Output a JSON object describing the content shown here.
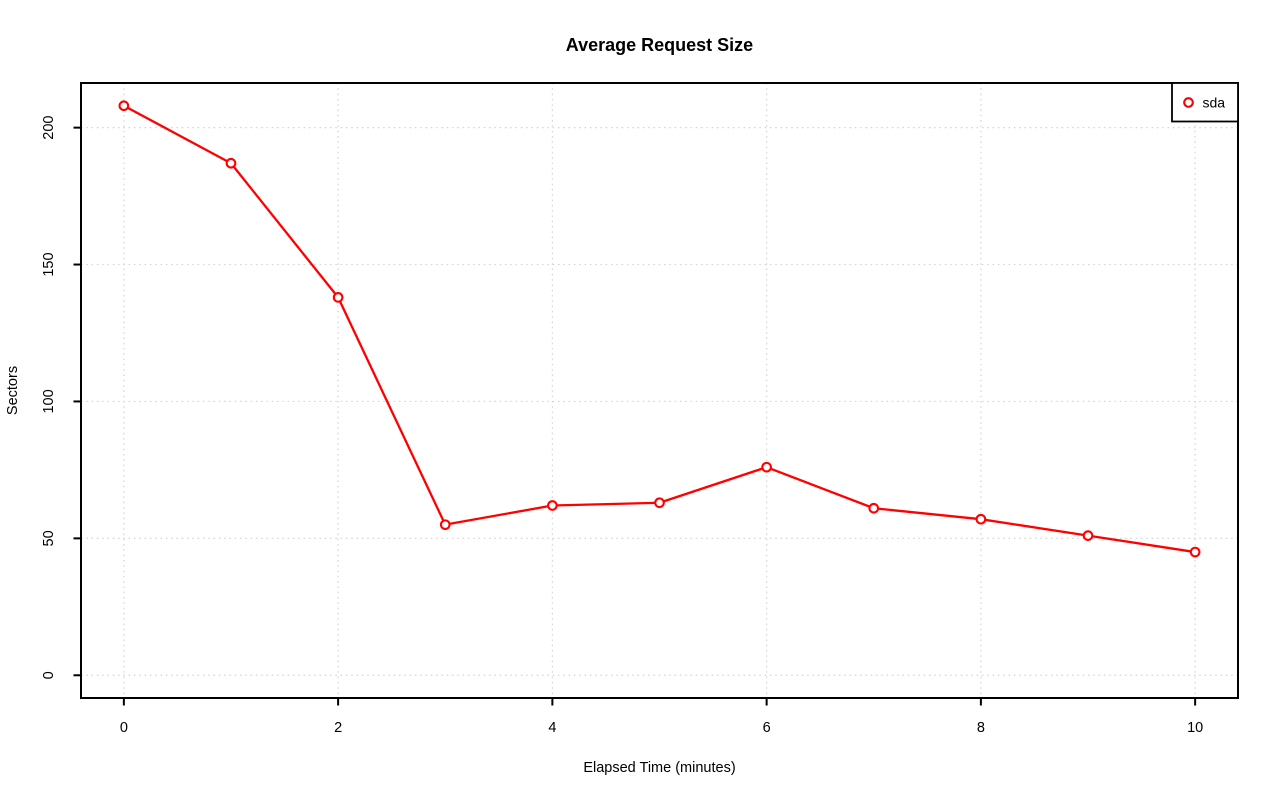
{
  "chart_data": {
    "type": "line",
    "title": "Average Request Size",
    "xlabel": "Elapsed Time (minutes)",
    "ylabel": "Sectors",
    "x": [
      0,
      1,
      2,
      3,
      4,
      5,
      6,
      7,
      8,
      9,
      10
    ],
    "series": [
      {
        "name": "sda",
        "color": "#ff0000",
        "marker": "open-circle",
        "values": [
          208,
          187,
          138,
          55,
          62,
          63,
          76,
          61,
          57,
          51,
          45
        ]
      }
    ],
    "xticks": [
      "0",
      "2",
      "4",
      "6",
      "8",
      "10"
    ],
    "xtick_values": [
      0,
      2,
      4,
      6,
      8,
      10
    ],
    "yticks": [
      "0",
      "50",
      "100",
      "150",
      "200"
    ],
    "ytick_values": [
      0,
      50,
      100,
      150,
      200
    ],
    "xlim": [
      -0.4,
      10.4
    ],
    "ylim": [
      -8.3,
      216.3
    ],
    "grid": "dotted",
    "grid_color": "#d3d3d3",
    "axis_color": "#000000",
    "background_color": "#ffffff",
    "legend_position": "topright",
    "legend": [
      {
        "label": "sda",
        "color": "#ff0000",
        "marker": "open-circle"
      }
    ]
  }
}
